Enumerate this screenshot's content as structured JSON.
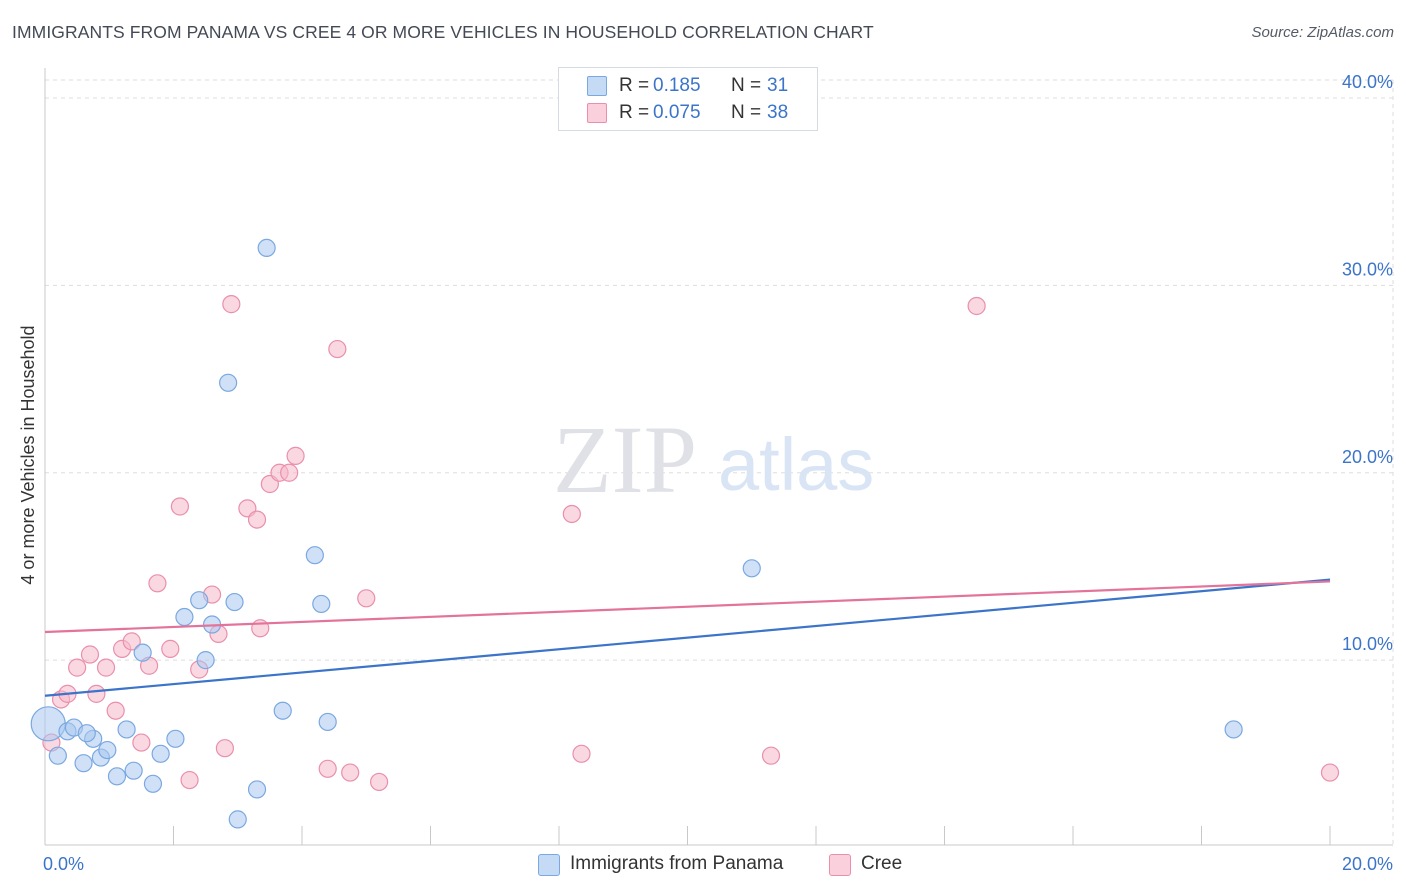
{
  "header": {
    "title": "IMMIGRANTS FROM PANAMA VS CREE 4 OR MORE VEHICLES IN HOUSEHOLD CORRELATION CHART",
    "source": "Source: ZipAtlas.com"
  },
  "watermark": {
    "zip": "ZIP",
    "atlas": "atlas"
  },
  "legend_top": {
    "r_label": "R =",
    "n_label": "N =",
    "rows": [
      {
        "r": "0.185",
        "n": "31"
      },
      {
        "r": "0.075",
        "n": "38"
      }
    ]
  },
  "legend_bottom": {
    "items": [
      "Immigrants from Panama",
      "Cree"
    ]
  },
  "colors": {
    "blue_fill": "#a9c8f0",
    "blue_stroke": "#7aa8e0",
    "blue_line": "#3b74c9",
    "pink_fill": "#f6b8cb",
    "pink_stroke": "#ea8fab",
    "pink_line": "#e3739a",
    "axis_text": "#3b74c9",
    "grid": "#dddddd"
  },
  "chart_data": {
    "type": "scatter",
    "title": "IMMIGRANTS FROM PANAMA VS CREE 4 OR MORE VEHICLES IN HOUSEHOLD CORRELATION CHART",
    "xlabel": "",
    "ylabel": "4 or more Vehicles in Household",
    "xlim": [
      0,
      20
    ],
    "ylim": [
      0,
      40
    ],
    "x_tick_labels": [
      "0.0%",
      "20.0%"
    ],
    "y_tick_values": [
      10,
      20,
      30,
      40
    ],
    "y_tick_labels": [
      "10.0%",
      "20.0%",
      "30.0%",
      "40.0%"
    ],
    "grid": true,
    "legend_position": "top-center",
    "series": [
      {
        "name": "Immigrants from Panama",
        "r": 0.185,
        "n": 31,
        "trend": {
          "x": [
            0,
            20
          ],
          "y": [
            8.1,
            14.3
          ]
        },
        "points": [
          {
            "x": 0.05,
            "y": 6.6,
            "size": "large"
          },
          {
            "x": 0.2,
            "y": 4.9
          },
          {
            "x": 0.35,
            "y": 6.2
          },
          {
            "x": 0.45,
            "y": 6.4
          },
          {
            "x": 0.6,
            "y": 4.5
          },
          {
            "x": 0.75,
            "y": 5.8
          },
          {
            "x": 0.87,
            "y": 4.8
          },
          {
            "x": 0.97,
            "y": 5.2
          },
          {
            "x": 1.12,
            "y": 3.8
          },
          {
            "x": 1.27,
            "y": 6.3
          },
          {
            "x": 1.38,
            "y": 4.1
          },
          {
            "x": 1.52,
            "y": 10.4
          },
          {
            "x": 1.68,
            "y": 3.4
          },
          {
            "x": 1.8,
            "y": 5.0
          },
          {
            "x": 2.03,
            "y": 5.8
          },
          {
            "x": 2.17,
            "y": 12.3
          },
          {
            "x": 2.4,
            "y": 13.2
          },
          {
            "x": 2.5,
            "y": 10.0
          },
          {
            "x": 2.6,
            "y": 11.9
          },
          {
            "x": 2.85,
            "y": 24.8
          },
          {
            "x": 2.95,
            "y": 13.1
          },
          {
            "x": 3.0,
            "y": 1.5
          },
          {
            "x": 3.3,
            "y": 3.1
          },
          {
            "x": 3.45,
            "y": 32.0
          },
          {
            "x": 3.7,
            "y": 7.3
          },
          {
            "x": 4.2,
            "y": 15.6
          },
          {
            "x": 4.3,
            "y": 13.0
          },
          {
            "x": 4.4,
            "y": 6.7
          },
          {
            "x": 11.0,
            "y": 14.9
          },
          {
            "x": 18.5,
            "y": 6.3
          },
          {
            "x": 0.65,
            "y": 6.1
          }
        ]
      },
      {
        "name": "Cree",
        "r": 0.075,
        "n": 38,
        "trend": {
          "x": [
            0,
            20
          ],
          "y": [
            11.5,
            14.2
          ]
        },
        "points": [
          {
            "x": 0.1,
            "y": 5.6
          },
          {
            "x": 0.25,
            "y": 7.9
          },
          {
            "x": 0.35,
            "y": 8.2
          },
          {
            "x": 0.5,
            "y": 9.6
          },
          {
            "x": 0.7,
            "y": 10.3
          },
          {
            "x": 0.8,
            "y": 8.2
          },
          {
            "x": 0.95,
            "y": 9.6
          },
          {
            "x": 1.1,
            "y": 7.3
          },
          {
            "x": 1.2,
            "y": 10.6
          },
          {
            "x": 1.35,
            "y": 11.0
          },
          {
            "x": 1.5,
            "y": 5.6
          },
          {
            "x": 1.62,
            "y": 9.7
          },
          {
            "x": 1.75,
            "y": 14.1
          },
          {
            "x": 1.95,
            "y": 10.6
          },
          {
            "x": 2.1,
            "y": 18.2
          },
          {
            "x": 2.25,
            "y": 3.6
          },
          {
            "x": 2.4,
            "y": 9.5
          },
          {
            "x": 2.6,
            "y": 13.5
          },
          {
            "x": 2.7,
            "y": 11.4
          },
          {
            "x": 2.8,
            "y": 5.3
          },
          {
            "x": 2.9,
            "y": 29.0
          },
          {
            "x": 3.15,
            "y": 18.1
          },
          {
            "x": 3.3,
            "y": 17.5
          },
          {
            "x": 3.35,
            "y": 11.7
          },
          {
            "x": 3.5,
            "y": 19.4
          },
          {
            "x": 3.65,
            "y": 20.0
          },
          {
            "x": 3.8,
            "y": 20.0
          },
          {
            "x": 3.9,
            "y": 20.9
          },
          {
            "x": 4.4,
            "y": 4.2
          },
          {
            "x": 4.55,
            "y": 26.6
          },
          {
            "x": 4.75,
            "y": 4.0
          },
          {
            "x": 5.0,
            "y": 13.3
          },
          {
            "x": 5.2,
            "y": 3.5
          },
          {
            "x": 8.2,
            "y": 17.8
          },
          {
            "x": 8.35,
            "y": 5.0
          },
          {
            "x": 11.3,
            "y": 4.9
          },
          {
            "x": 14.5,
            "y": 28.9
          },
          {
            "x": 20.0,
            "y": 4.0
          }
        ]
      }
    ]
  }
}
